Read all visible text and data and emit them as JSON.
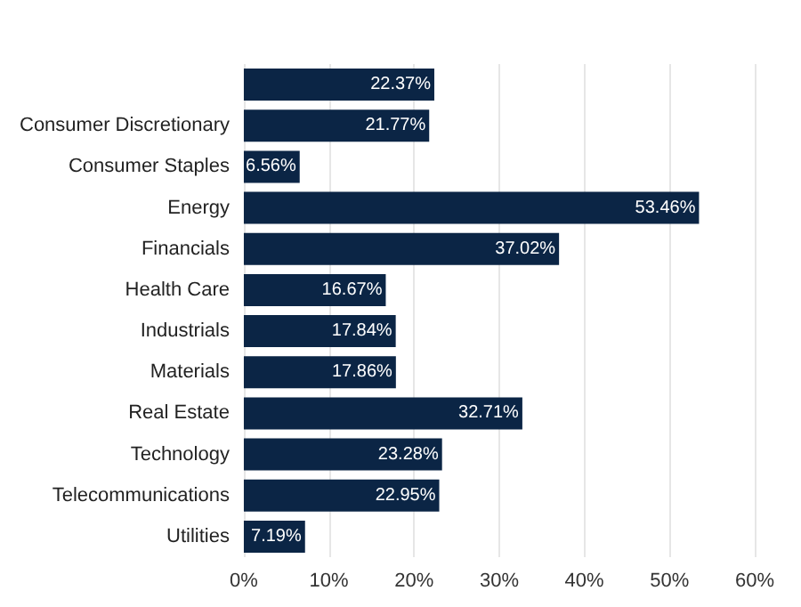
{
  "chart_data": {
    "type": "bar",
    "orientation": "horizontal",
    "categories": [
      null,
      "Consumer Discretionary",
      "Consumer Staples",
      "Energy",
      "Financials",
      "Health Care",
      "Industrials",
      "Materials",
      "Real Estate",
      "Technology",
      "Telecommunications",
      "Utilities"
    ],
    "values": [
      22.37,
      21.77,
      6.56,
      53.46,
      37.02,
      16.67,
      17.84,
      17.86,
      32.71,
      23.28,
      22.95,
      7.19
    ],
    "value_labels": [
      "22.37%",
      "21.77%",
      "6.56%",
      "53.46%",
      "37.02%",
      "16.67%",
      "17.84%",
      "17.86%",
      "32.71%",
      "23.28%",
      "22.95%",
      "7.19%"
    ],
    "color": "#0b2545",
    "xlim": [
      0,
      60
    ],
    "xticks": [
      {
        "value": 0,
        "label": "0%"
      },
      {
        "value": 10,
        "label": "10%"
      },
      {
        "value": 20,
        "label": "20%"
      },
      {
        "value": 30,
        "label": "30%"
      },
      {
        "value": 40,
        "label": "40%"
      },
      {
        "value": 50,
        "label": "50%"
      },
      {
        "value": 60,
        "label": "60%"
      }
    ],
    "grid": "x"
  }
}
